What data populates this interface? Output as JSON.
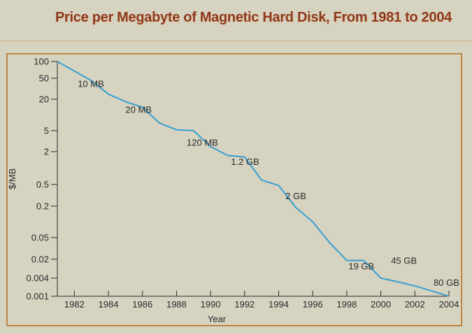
{
  "page": {
    "title": "Price per Megabyte of Magnetic Hard Disk, From 1981 to 2004"
  },
  "colors": {
    "title": "#8c3a1e",
    "line": "#3a9fd0",
    "frame": "#b8864b",
    "background": "#d6d3c1"
  },
  "chart_data": {
    "type": "line",
    "title": "Price per Megabyte of Magnetic Hard Disk, From 1981 to 2004",
    "xlabel": "Year",
    "ylabel": "$/MB",
    "y_scale": "log (irregular tick spacing)",
    "xlim": [
      1981,
      2004
    ],
    "x_ticks": [
      1982,
      1984,
      1986,
      1988,
      1990,
      1992,
      1994,
      1996,
      1998,
      2000,
      2002,
      2004
    ],
    "y_ticks": [
      0.001,
      0.004,
      0.02,
      0.05,
      0.2,
      0.5,
      2,
      5,
      20,
      50,
      100
    ],
    "y_tick_labels": [
      "0.001",
      "0.004",
      "0.02",
      "0.05",
      "0.2",
      "0.5",
      "2",
      "5",
      "20",
      "50",
      "100"
    ],
    "grid": false,
    "series": [
      {
        "name": "$/MB",
        "x": [
          1981,
          1983,
          1984,
          1985,
          1986,
          1987,
          1988,
          1989,
          1990,
          1991,
          1992,
          1993,
          1994,
          1995,
          1996,
          1997,
          1998,
          1999,
          2000,
          2001,
          2002,
          2003,
          2004
        ],
        "y": [
          100,
          45,
          25,
          18,
          14,
          7,
          5.2,
          5,
          2.5,
          1.7,
          1.6,
          0.6,
          0.48,
          0.19,
          0.1,
          0.04,
          0.018,
          0.018,
          0.004,
          0.003,
          0.0022,
          0.0015,
          0.001
        ]
      }
    ],
    "annotations": [
      {
        "text": "10 MB",
        "x": 1982.2,
        "y": 34
      },
      {
        "text": "20 MB",
        "x": 1985.0,
        "y": 11
      },
      {
        "text": "120 MB",
        "x": 1988.6,
        "y": 2.6
      },
      {
        "text": "1.2 GB",
        "x": 1991.2,
        "y": 1.15
      },
      {
        "text": "2 GB",
        "x": 1994.4,
        "y": 0.27
      },
      {
        "text": "19 GB",
        "x": 1998.1,
        "y": 0.0085
      },
      {
        "text": "45 GB",
        "x": 2000.6,
        "y": 0.0135
      },
      {
        "text": "80 GB",
        "x": 2003.1,
        "y": 0.0022
      }
    ]
  }
}
